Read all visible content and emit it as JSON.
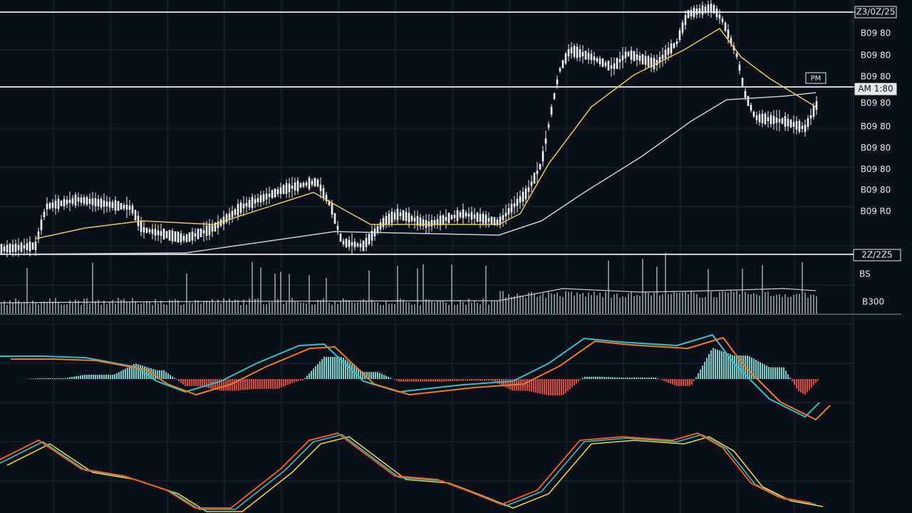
{
  "price_axis": {
    "labels": [
      "Z3/0Z/25",
      "B09 80",
      "B09 80",
      "B09 80",
      "AM 1:80",
      "B09 80",
      "B09 80",
      "B09 80",
      "B09 80",
      "B09 80",
      "B09 R0"
    ],
    "last_date": "2Z/2Z5"
  },
  "price_tag": "PM",
  "volume_axis": {
    "labels": [
      "BS",
      "B300"
    ]
  }
}
